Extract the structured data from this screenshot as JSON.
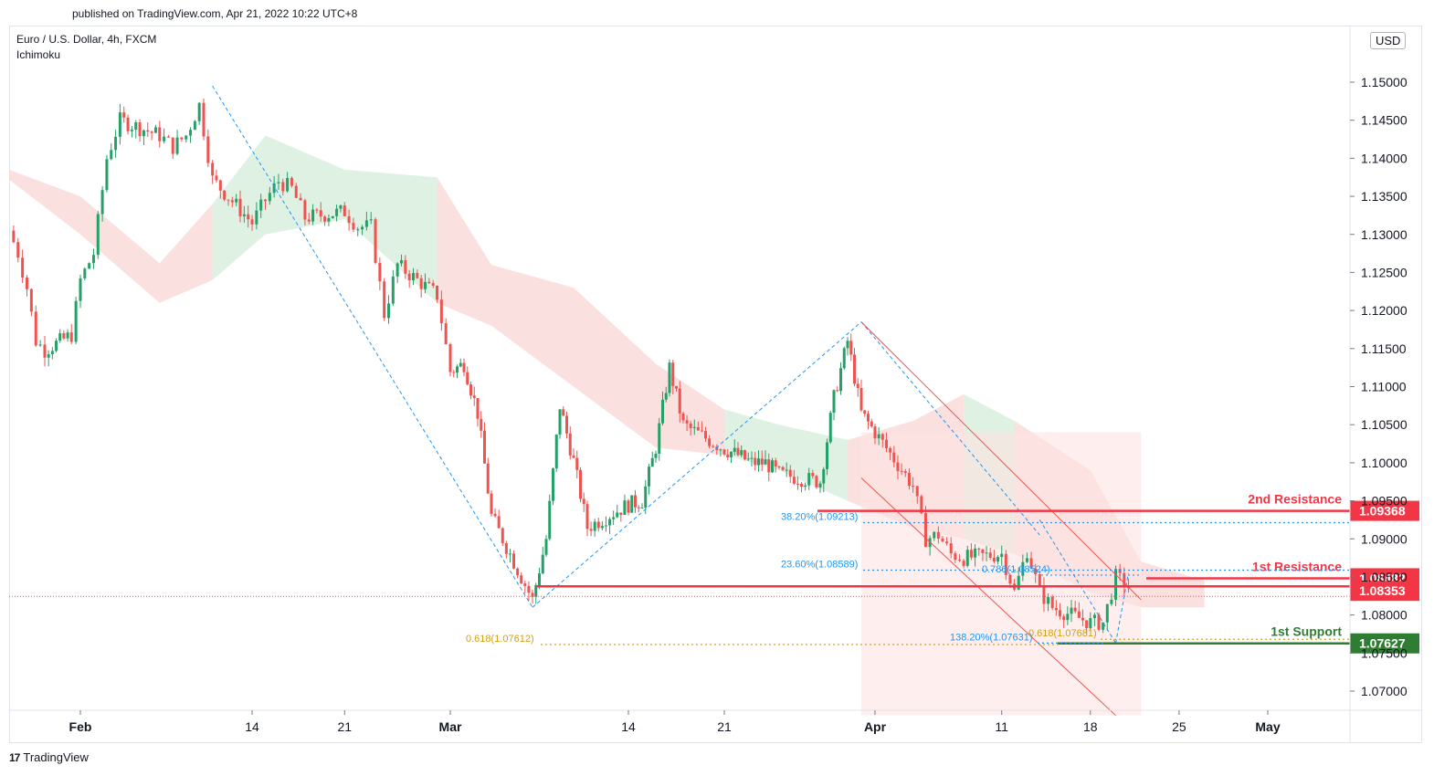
{
  "header": {
    "published": "published on TradingView.com, Apr 21, 2022 10:22 UTC+8",
    "symbol": "Euro / U.S. Dollar, 4h, FXCM",
    "indicator": "Ichimoku",
    "currency_button": "USD"
  },
  "footer": {
    "brand": "TradingView",
    "logo_icon": "tradingview-logo-icon"
  },
  "colors": {
    "up": "#26a069",
    "down": "#ef5350",
    "fib": "#2196f3",
    "gold": "#d4a017",
    "resistance": "#f23645",
    "support": "#2e7d32",
    "cloud_red": "#f8d5d3",
    "cloud_green": "#d4ecd9"
  },
  "chart_data": {
    "type": "candlestick",
    "symbol": "EURUSD",
    "timeframe": "4h",
    "y_axis": {
      "range": [
        1.0668,
        1.1552
      ],
      "ticks": [
        "1.15000",
        "1.14500",
        "1.14000",
        "1.13500",
        "1.13000",
        "1.12500",
        "1.12000",
        "1.11500",
        "1.11000",
        "1.10500",
        "1.10000",
        "1.09500",
        "1.09000",
        "1.08500",
        "1.08000",
        "1.07500",
        "1.07000"
      ]
    },
    "x_axis": {
      "ticks": [
        {
          "label": "Feb",
          "bold": true,
          "date": "2022-02-01"
        },
        {
          "label": "14",
          "date": "2022-02-14"
        },
        {
          "label": "21",
          "date": "2022-02-21"
        },
        {
          "label": "Mar",
          "bold": true,
          "date": "2022-03-01"
        },
        {
          "label": "14",
          "date": "2022-03-14"
        },
        {
          "label": "21",
          "date": "2022-03-21"
        },
        {
          "label": "Apr",
          "bold": true,
          "date": "2022-04-01"
        },
        {
          "label": "11",
          "date": "2022-04-11"
        },
        {
          "label": "18",
          "date": "2022-04-18"
        },
        {
          "label": "25",
          "date": "2022-04-25"
        },
        {
          "label": "May",
          "bold": true,
          "date": "2022-05-02"
        }
      ]
    },
    "price_path": [
      [
        "2022-01-24",
        1.1305
      ],
      [
        "2022-01-25",
        1.1275
      ],
      [
        "2022-01-26",
        1.123
      ],
      [
        "2022-01-27",
        1.116
      ],
      [
        "2022-01-28",
        1.1148
      ],
      [
        "2022-01-31",
        1.1168
      ],
      [
        "2022-02-01",
        1.124
      ],
      [
        "2022-02-02",
        1.1275
      ],
      [
        "2022-02-03",
        1.14
      ],
      [
        "2022-02-04",
        1.145
      ],
      [
        "2022-02-07",
        1.143
      ],
      [
        "2022-02-08",
        1.1415
      ],
      [
        "2022-02-09",
        1.143
      ],
      [
        "2022-02-10",
        1.147
      ],
      [
        "2022-02-11",
        1.1372
      ],
      [
        "2022-02-14",
        1.1315
      ],
      [
        "2022-02-15",
        1.1345
      ],
      [
        "2022-02-16",
        1.137
      ],
      [
        "2022-02-17",
        1.136
      ],
      [
        "2022-02-18",
        1.1322
      ],
      [
        "2022-02-21",
        1.133
      ],
      [
        "2022-02-22",
        1.131
      ],
      [
        "2022-02-23",
        1.131
      ],
      [
        "2022-02-24",
        1.1195
      ],
      [
        "2022-02-25",
        1.126
      ],
      [
        "2022-02-28",
        1.122
      ],
      [
        "2022-03-01",
        1.112
      ],
      [
        "2022-03-02",
        1.113
      ],
      [
        "2022-03-03",
        1.1065
      ],
      [
        "2022-03-04",
        1.093
      ],
      [
        "2022-03-07",
        1.082
      ],
      [
        "2022-03-08",
        1.09
      ],
      [
        "2022-03-09",
        1.1075
      ],
      [
        "2022-03-10",
        1.1002
      ],
      [
        "2022-03-11",
        1.0915
      ],
      [
        "2022-03-14",
        1.0945
      ],
      [
        "2022-03-15",
        1.095
      ],
      [
        "2022-03-16",
        1.102
      ],
      [
        "2022-03-17",
        1.1125
      ],
      [
        "2022-03-18",
        1.105
      ],
      [
        "2022-03-21",
        1.1018
      ],
      [
        "2022-03-22",
        1.101
      ],
      [
        "2022-03-23",
        1.1
      ],
      [
        "2022-03-24",
        1.1
      ],
      [
        "2022-03-25",
        1.0985
      ],
      [
        "2022-03-28",
        1.0975
      ],
      [
        "2022-03-29",
        1.1085
      ],
      [
        "2022-03-30",
        1.116
      ],
      [
        "2022-03-31",
        1.1065
      ],
      [
        "2022-04-01",
        1.104
      ],
      [
        "2022-04-04",
        1.097
      ],
      [
        "2022-04-05",
        1.09
      ],
      [
        "2022-04-06",
        1.0905
      ],
      [
        "2022-04-07",
        1.088
      ],
      [
        "2022-04-08",
        1.0875
      ],
      [
        "2022-04-11",
        1.088
      ],
      [
        "2022-04-12",
        1.083
      ],
      [
        "2022-04-13",
        1.0885
      ],
      [
        "2022-04-14",
        1.083
      ],
      [
        "2022-04-15",
        1.081
      ],
      [
        "2022-04-18",
        1.079
      ],
      [
        "2022-04-19",
        1.079
      ],
      [
        "2022-04-20",
        1.085
      ],
      [
        "2022-04-21",
        1.0838
      ]
    ],
    "ichimoku_cloud": [
      [
        "2022-01-24",
        1.1385,
        1.1372
      ],
      [
        "2022-02-01",
        1.135,
        1.13
      ],
      [
        "2022-02-07",
        1.1262,
        1.121
      ],
      [
        "2022-02-11",
        1.134,
        1.124
      ],
      [
        "2022-02-15",
        1.143,
        1.13
      ],
      [
        "2022-02-21",
        1.1385,
        1.132
      ],
      [
        "2022-02-28",
        1.1375,
        1.121
      ],
      [
        "2022-03-04",
        1.126,
        1.118
      ],
      [
        "2022-03-10",
        1.123,
        1.11
      ],
      [
        "2022-03-16",
        1.113,
        1.102
      ],
      [
        "2022-03-21",
        1.107,
        1.101
      ],
      [
        "2022-03-25",
        1.105,
        1.099
      ],
      [
        "2022-03-30",
        1.103,
        1.095
      ],
      [
        "2022-04-04",
        1.1055,
        1.0915
      ],
      [
        "2022-04-08",
        1.109,
        1.09
      ],
      [
        "2022-04-12",
        1.1055,
        1.088
      ],
      [
        "2022-04-18",
        1.099,
        1.083
      ],
      [
        "2022-04-22",
        1.087,
        1.081
      ],
      [
        "2022-04-27",
        1.0845,
        1.081
      ]
    ],
    "levels": [
      {
        "name": "2nd Resistance",
        "value": "1.09368",
        "color": "resistance"
      },
      {
        "name": "1st Resistance",
        "value": "1.08482",
        "color": "resistance"
      },
      {
        "name": "1st Support",
        "value": "1.07627",
        "color": "support"
      }
    ],
    "current_price": "1.08353",
    "fib_labels": [
      {
        "text": "38.20%(1.09213)",
        "value": 1.09213,
        "color": "fib"
      },
      {
        "text": "23.60%(1.08589)",
        "value": 1.08589,
        "color": "fib"
      },
      {
        "text": "0.618(1.07612)",
        "value": 1.07612,
        "color": "gold"
      },
      {
        "text": "0.618(1.07681)",
        "value": 1.07681,
        "color": "gold"
      },
      {
        "text": "138.20%(1.07631)",
        "value": 1.07631,
        "color": "fib"
      },
      {
        "text": "0.786(1.08524)",
        "value": 1.08524,
        "color": "fib"
      }
    ],
    "trend_lines": [
      [
        [
          "2022-02-11",
          1.1495
        ],
        [
          "2022-03-07",
          1.081
        ]
      ],
      [
        [
          "2022-03-07",
          1.081
        ],
        [
          "2022-03-31",
          1.1185
        ]
      ],
      [
        [
          "2022-03-31",
          1.1185
        ],
        [
          "2022-04-14",
          1.0905
        ]
      ],
      [
        [
          "2022-04-14",
          1.0925
        ],
        [
          "2022-04-20",
          1.0763
        ]
      ],
      [
        [
          "2022-04-20",
          1.0763
        ],
        [
          "2022-04-21",
          1.0855
        ]
      ]
    ],
    "channel": {
      "upper": [
        [
          "2022-03-31",
          1.1185
        ],
        [
          "2022-04-22",
          1.082
        ]
      ],
      "lower": [
        [
          "2022-03-31",
          1.098
        ],
        [
          "2022-04-20",
          1.0668
        ]
      ]
    },
    "forecast_box": {
      "from": "2022-03-31",
      "to": "2022-04-22",
      "top": 1.104,
      "bottom": 1.0668
    }
  }
}
